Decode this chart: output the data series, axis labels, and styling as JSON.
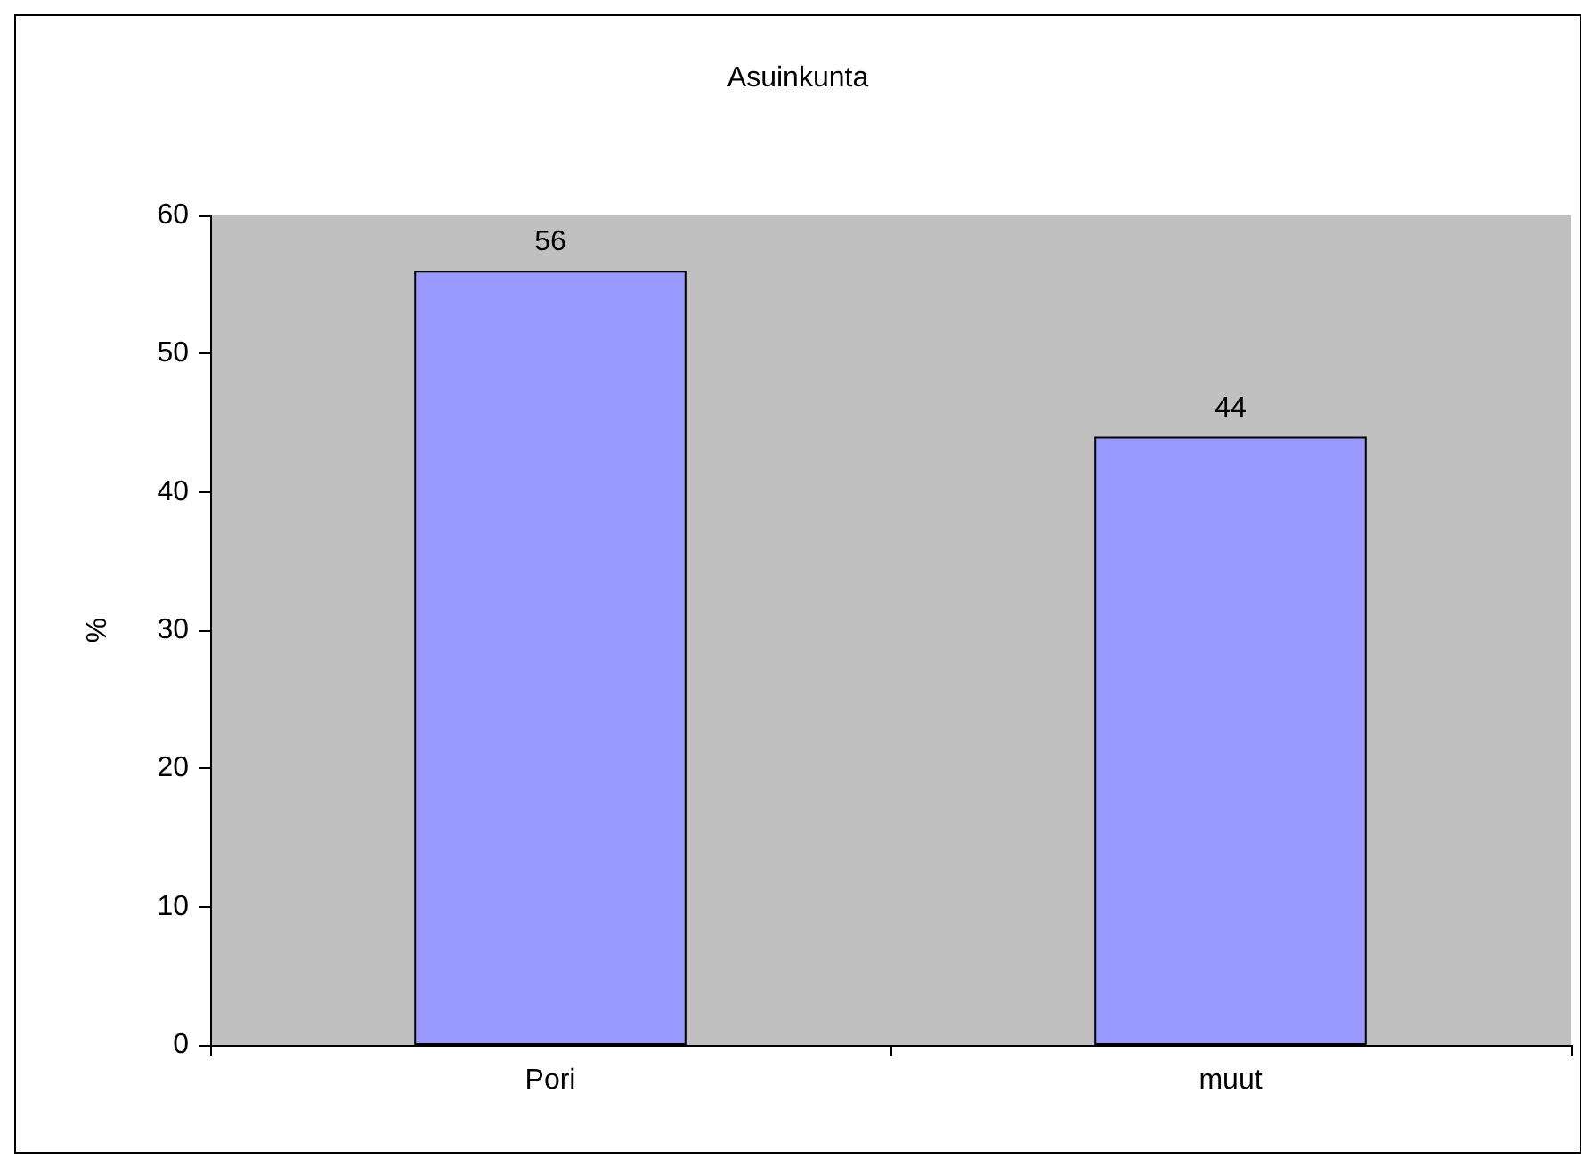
{
  "chart_data": {
    "type": "bar",
    "title": "Asuinkunta",
    "ylabel": "%",
    "categories": [
      "Pori",
      "muut"
    ],
    "values": [
      56,
      44
    ],
    "color": "#9999ff",
    "ylim": [
      0,
      60
    ],
    "yticks": [
      0,
      10,
      20,
      30,
      40,
      50,
      60
    ],
    "grid": false,
    "data_labels": true
  }
}
